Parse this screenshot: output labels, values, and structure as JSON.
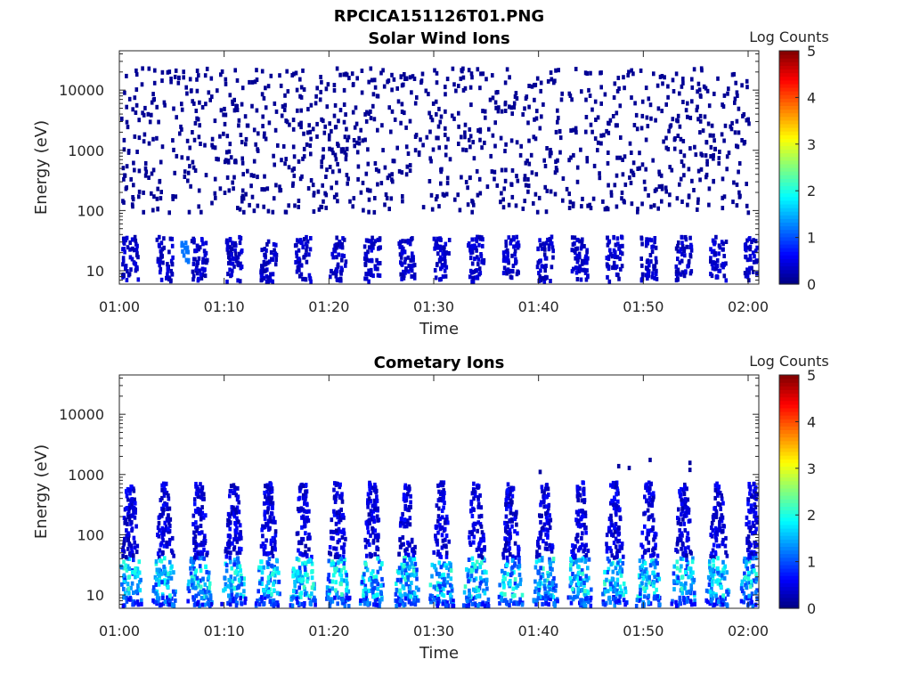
{
  "figure": {
    "title": "RPCICA151126T01.PNG"
  },
  "chart_data": [
    {
      "type": "heatmap",
      "title": "Solar Wind Ions",
      "xlabel": "Time",
      "ylabel": "Energy (eV)",
      "x_ticks": [
        "01:00",
        "01:10",
        "01:20",
        "01:30",
        "01:40",
        "01:50",
        "02:00"
      ],
      "x_range": [
        "01:00",
        "02:00"
      ],
      "y_scale": "log",
      "y_ticks": [
        10,
        100,
        1000,
        10000
      ],
      "y_range": [
        6,
        45000
      ],
      "colorbar": {
        "label": "Log Counts",
        "range": [
          0,
          5
        ],
        "ticks": [
          0,
          1,
          2,
          3,
          4,
          5
        ],
        "colormap": "jet"
      },
      "features": [
        {
          "pattern": "sparse isolated single counts",
          "energy_range_eV": [
            100,
            25000
          ],
          "log_counts": 0
        },
        {
          "pattern": "periodic vertical streaks",
          "energy_range_eV": [
            6,
            40
          ],
          "log_counts": [
            0,
            0.8
          ],
          "period_minutes": 3.3
        },
        {
          "pattern": "brief brighter patch near 01:06",
          "energy_range_eV": [
            15,
            35
          ],
          "log_counts": 1.2
        }
      ]
    },
    {
      "type": "heatmap",
      "title": "Cometary Ions",
      "xlabel": "Time",
      "ylabel": "Energy (eV)",
      "x_ticks": [
        "01:00",
        "01:10",
        "01:20",
        "01:30",
        "01:40",
        "01:50",
        "02:00"
      ],
      "x_range": [
        "01:00",
        "02:00"
      ],
      "y_scale": "log",
      "y_ticks": [
        10,
        100,
        1000,
        10000
      ],
      "y_range": [
        6,
        45000
      ],
      "colorbar": {
        "label": "Log Counts",
        "range": [
          0,
          5
        ],
        "ticks": [
          0,
          1,
          2,
          3,
          4,
          5
        ],
        "colormap": "jet"
      },
      "features": [
        {
          "pattern": "periodic V-shaped bursts",
          "energy_range_eV": [
            6,
            800
          ],
          "log_counts": [
            0,
            2.2
          ],
          "period_minutes": 3.3
        },
        {
          "pattern": "peak intensity band",
          "energy_range_eV": [
            10,
            45
          ],
          "log_counts": 2.0
        },
        {
          "pattern": "isolated high-energy counts near 01:45-01:52",
          "energy_range_eV": [
            1000,
            2000
          ],
          "log_counts": 0
        }
      ]
    }
  ]
}
